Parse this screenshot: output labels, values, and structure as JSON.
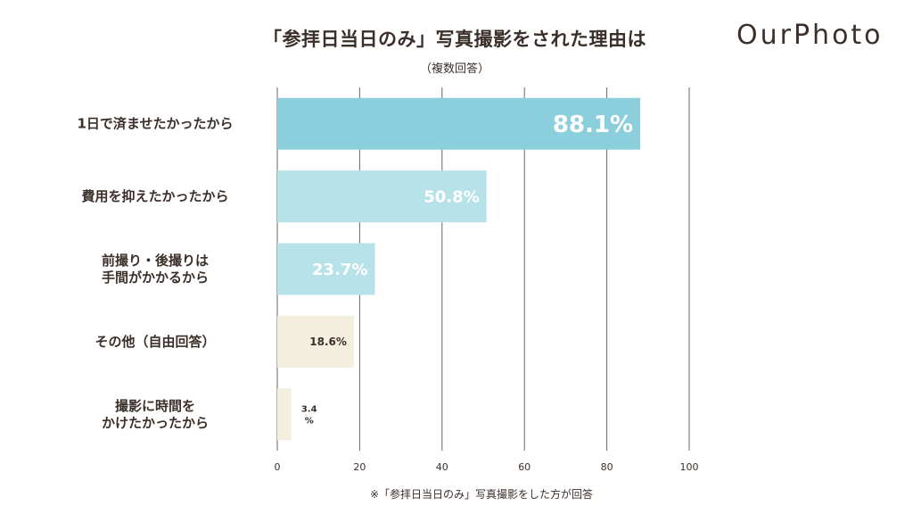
{
  "header": {
    "title": "「参拝日当日のみ」写真撮影をされた理由は",
    "subtitle": "（複数回答）",
    "logo_text": "OurPhoto"
  },
  "footnote": "※「参拝日当日のみ」写真撮影をした方が回答",
  "chart_data": {
    "type": "bar",
    "orientation": "horizontal",
    "title": "「参拝日当日のみ」写真撮影をされた理由は",
    "subtitle": "（複数回答）",
    "categories": [
      [
        "1日で済ませたかったから"
      ],
      [
        "費用を抑えたかったから"
      ],
      [
        "前撮り・後撮りは",
        "手間がかかるから"
      ],
      [
        "その他（自由回答）"
      ],
      [
        "撮影に時間を",
        "かけたかったから"
      ]
    ],
    "values": [
      88.1,
      50.8,
      23.7,
      18.6,
      3.4
    ],
    "value_labels": [
      "88.1%",
      "50.8%",
      "23.7%",
      "18.6%",
      "3.4\n%"
    ],
    "bar_colors": [
      "#8ccfdc",
      "#b8e2ea",
      "#b8e2ea",
      "#f3eedd",
      "#f3eedd"
    ],
    "label_colors": [
      "#ffffff",
      "#ffffff",
      "#ffffff",
      "#3b2f2a",
      "#3b2f2a"
    ],
    "x_ticks": [
      0,
      20,
      40,
      60,
      80,
      100
    ],
    "xlim": [
      0,
      100
    ],
    "grid": true,
    "legend": "none",
    "xlabel": "",
    "ylabel": ""
  }
}
